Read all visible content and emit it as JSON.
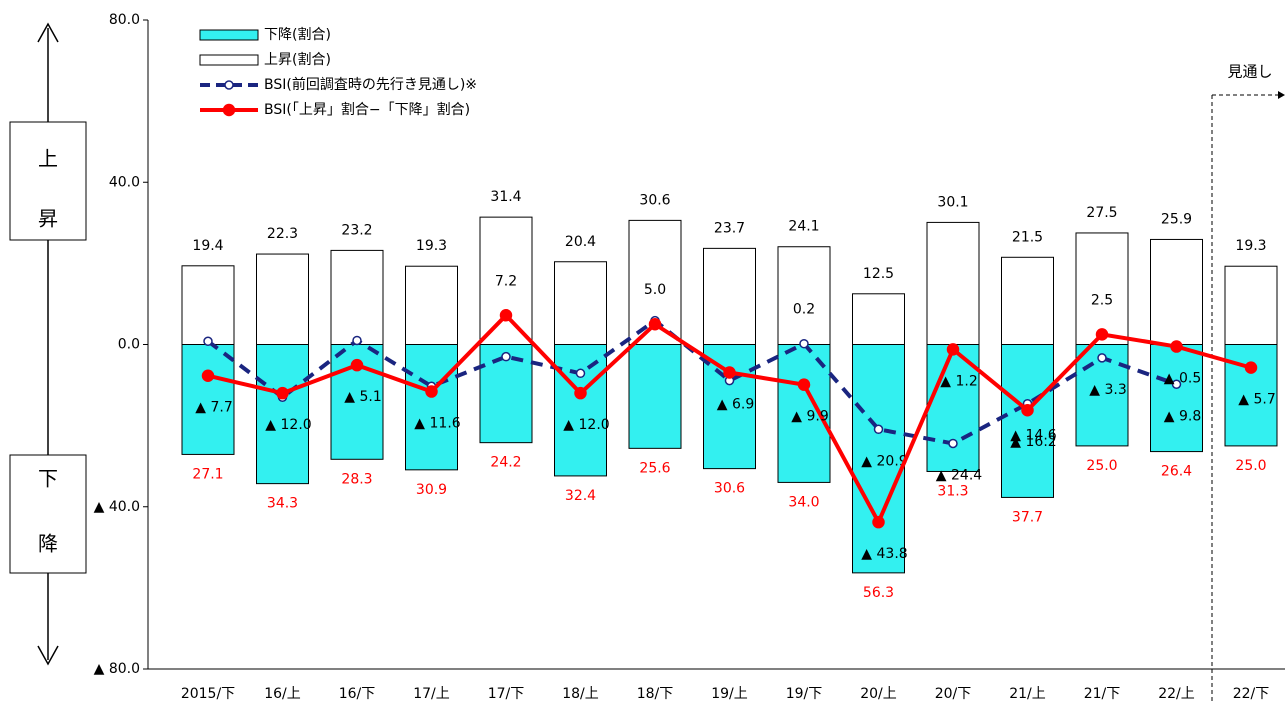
{
  "chart_data": {
    "type": "combo",
    "categories": [
      "2015/下",
      "16/上",
      "16/下",
      "17/上",
      "17/下",
      "18/上",
      "18/下",
      "19/上",
      "19/下",
      "20/上",
      "20/下",
      "21/上",
      "21/下",
      "22/上",
      "22/下"
    ],
    "series": [
      {
        "name": "下降(割合)",
        "kind": "bar",
        "color": "#33f0f0",
        "values": [
          -27.1,
          -34.3,
          -28.3,
          -30.9,
          -24.2,
          -32.4,
          -25.6,
          -30.6,
          -34.0,
          -56.3,
          -31.3,
          -37.7,
          -25.0,
          -26.4,
          -25.0
        ],
        "value_labels": [
          "27.1",
          "34.3",
          "28.3",
          "30.9",
          "24.2",
          "32.4",
          "25.6",
          "30.6",
          "34.0",
          "56.3",
          "31.3",
          "37.7",
          "25.0",
          "26.4",
          "25.0"
        ]
      },
      {
        "name": "上昇(割合)",
        "kind": "bar",
        "color": "#ffffff",
        "values": [
          19.4,
          22.3,
          23.2,
          19.3,
          31.4,
          20.4,
          30.6,
          23.7,
          24.1,
          12.5,
          30.1,
          21.5,
          27.5,
          25.9,
          19.3
        ]
      },
      {
        "name": "BSI(前回調査時の先行き見通し)※",
        "kind": "line",
        "dashed": true,
        "color": "#1a2580",
        "values": [
          0.8,
          -13.0,
          1.0,
          -10.3,
          -3.0,
          -7.1,
          5.9,
          -8.9,
          0.2,
          -20.9,
          -24.4,
          -14.6,
          -3.3,
          -9.8,
          null
        ],
        "value_labels": [
          null,
          null,
          null,
          null,
          null,
          null,
          null,
          null,
          "0.2",
          "▲ 20.9",
          "▲ 24.4",
          "▲ 14.6",
          "▲ 3.3",
          "▲ 9.8",
          null
        ]
      },
      {
        "name": "BSI(「上昇」割合−「下降」割合)",
        "kind": "line",
        "dashed": false,
        "color": "#ff0000",
        "values": [
          -7.7,
          -12.0,
          -5.1,
          -11.6,
          7.2,
          -12.0,
          5.0,
          -6.9,
          -9.9,
          -43.8,
          -1.2,
          -16.2,
          2.5,
          -0.5,
          -5.7
        ],
        "value_labels": [
          "▲ 7.7",
          "▲ 12.0",
          "▲ 5.1",
          "▲ 11.6",
          "7.2",
          "▲ 12.0",
          "5.0",
          "▲ 6.9",
          "▲ 9.9",
          "▲ 43.8",
          "▲ 1.2",
          "▲ 16.2",
          "2.5",
          "▲ 0.5",
          "▲ 5.7"
        ]
      }
    ],
    "ylim": [
      -80,
      80
    ],
    "yticks": [
      {
        "value": -80,
        "label": "▲ 80.0"
      },
      {
        "value": -40,
        "label": "▲ 40.0"
      },
      {
        "value": 0,
        "label": "0.0"
      },
      {
        "value": 40,
        "label": "40.0"
      },
      {
        "value": 80,
        "label": "80.0"
      }
    ],
    "grid": false,
    "legend": "top-left",
    "side_labels": {
      "up": [
        "上",
        "昇"
      ],
      "down": [
        "下",
        "降"
      ]
    },
    "forecast_annotation": "見通し"
  }
}
